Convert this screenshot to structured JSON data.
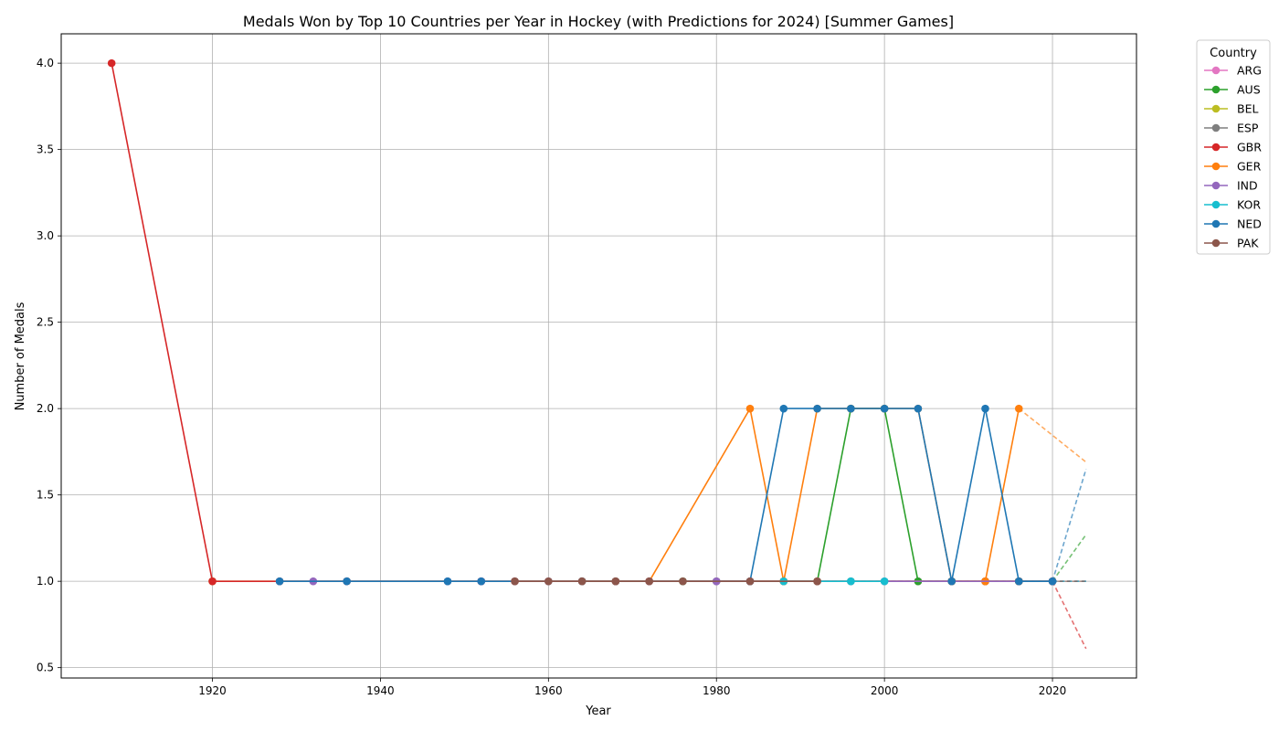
{
  "chart_data": {
    "type": "line",
    "title": "Medals Won by Top 10 Countries per Year in Hockey (with Predictions for 2024) [Summer Games]",
    "xlabel": "Year",
    "ylabel": "Number of Medals",
    "xlim": [
      1902,
      2030
    ],
    "ylim": [
      0.44,
      4.17
    ],
    "xticks": [
      1920,
      1940,
      1960,
      1980,
      2000,
      2020
    ],
    "yticks": [
      0.5,
      1.0,
      1.5,
      2.0,
      2.5,
      3.0,
      3.5,
      4.0
    ],
    "grid": true,
    "legend": {
      "title": "Country",
      "placement": "outside-top-right"
    },
    "series": [
      {
        "name": "ARG",
        "color": "#e377c2",
        "points": [
          [
            2000,
            1
          ],
          [
            2004,
            1
          ],
          [
            2008,
            1
          ],
          [
            2012,
            1
          ],
          [
            2016,
            1
          ],
          [
            2020,
            1
          ]
        ],
        "prediction": [
          [
            2020,
            1
          ],
          [
            2024,
            1
          ]
        ]
      },
      {
        "name": "AUS",
        "color": "#2ca02c",
        "points": [
          [
            1964,
            1
          ],
          [
            1968,
            1
          ],
          [
            1976,
            1
          ],
          [
            1992,
            1
          ],
          [
            1996,
            2
          ],
          [
            2000,
            2
          ],
          [
            2004,
            1
          ],
          [
            2008,
            1
          ],
          [
            2012,
            1
          ],
          [
            2016,
            1
          ],
          [
            2020,
            1
          ]
        ],
        "prediction": [
          [
            2020,
            1
          ],
          [
            2024,
            1.27
          ]
        ]
      },
      {
        "name": "BEL",
        "color": "#bcbd22",
        "points": [
          [
            1920,
            1
          ],
          [
            2016,
            1
          ],
          [
            2020,
            1
          ]
        ],
        "prediction": [
          [
            2020,
            1
          ],
          [
            2024,
            1
          ]
        ]
      },
      {
        "name": "ESP",
        "color": "#7f7f7f",
        "points": [
          [
            1980,
            1
          ],
          [
            1996,
            1
          ],
          [
            2008,
            1
          ]
        ],
        "prediction": [
          [
            2008,
            1
          ],
          [
            2024,
            1
          ]
        ]
      },
      {
        "name": "GBR",
        "color": "#d62728",
        "points": [
          [
            1908,
            4
          ],
          [
            1920,
            1
          ],
          [
            1952,
            1
          ],
          [
            1984,
            1
          ],
          [
            1988,
            1
          ],
          [
            1992,
            1
          ],
          [
            2012,
            1
          ],
          [
            2016,
            1
          ],
          [
            2020,
            1
          ]
        ],
        "prediction": [
          [
            2020,
            1
          ],
          [
            2024,
            0.61
          ]
        ]
      },
      {
        "name": "GER",
        "color": "#ff7f0e",
        "points": [
          [
            1928,
            1
          ],
          [
            1936,
            1
          ],
          [
            1956,
            1
          ],
          [
            1968,
            1
          ],
          [
            1972,
            1
          ],
          [
            1984,
            2
          ],
          [
            1988,
            1
          ],
          [
            1992,
            2
          ],
          [
            1996,
            2
          ],
          [
            2000,
            2
          ],
          [
            2004,
            2
          ],
          [
            2008,
            1
          ],
          [
            2012,
            1
          ],
          [
            2016,
            2
          ]
        ],
        "prediction": [
          [
            2016,
            2
          ],
          [
            2024,
            1.69
          ]
        ]
      },
      {
        "name": "IND",
        "color": "#9467bd",
        "points": [
          [
            1928,
            1
          ],
          [
            1932,
            1
          ],
          [
            1936,
            1
          ],
          [
            1948,
            1
          ],
          [
            1952,
            1
          ],
          [
            1956,
            1
          ],
          [
            1960,
            1
          ],
          [
            1964,
            1
          ],
          [
            1968,
            1
          ],
          [
            1972,
            1
          ],
          [
            1980,
            1
          ],
          [
            2020,
            1
          ]
        ],
        "prediction": [
          [
            2020,
            1
          ],
          [
            2024,
            1
          ]
        ]
      },
      {
        "name": "KOR",
        "color": "#17becf",
        "points": [
          [
            1988,
            1
          ],
          [
            1996,
            1
          ],
          [
            2000,
            1
          ]
        ],
        "prediction": [
          [
            2000,
            1
          ],
          [
            2024,
            1
          ]
        ]
      },
      {
        "name": "NED",
        "color": "#1f77b4",
        "points": [
          [
            1928,
            1
          ],
          [
            1936,
            1
          ],
          [
            1948,
            1
          ],
          [
            1952,
            1
          ],
          [
            1984,
            1
          ],
          [
            1988,
            2
          ],
          [
            1992,
            2
          ],
          [
            1996,
            2
          ],
          [
            2000,
            2
          ],
          [
            2004,
            2
          ],
          [
            2008,
            1
          ],
          [
            2012,
            2
          ],
          [
            2016,
            1
          ],
          [
            2020,
            1
          ]
        ],
        "prediction": [
          [
            2020,
            1
          ],
          [
            2024,
            1.65
          ]
        ]
      },
      {
        "name": "PAK",
        "color": "#8c564b",
        "points": [
          [
            1956,
            1
          ],
          [
            1960,
            1
          ],
          [
            1964,
            1
          ],
          [
            1968,
            1
          ],
          [
            1972,
            1
          ],
          [
            1976,
            1
          ],
          [
            1984,
            1
          ],
          [
            1992,
            1
          ]
        ],
        "prediction": [
          [
            1992,
            1
          ],
          [
            2024,
            1
          ]
        ]
      }
    ]
  }
}
